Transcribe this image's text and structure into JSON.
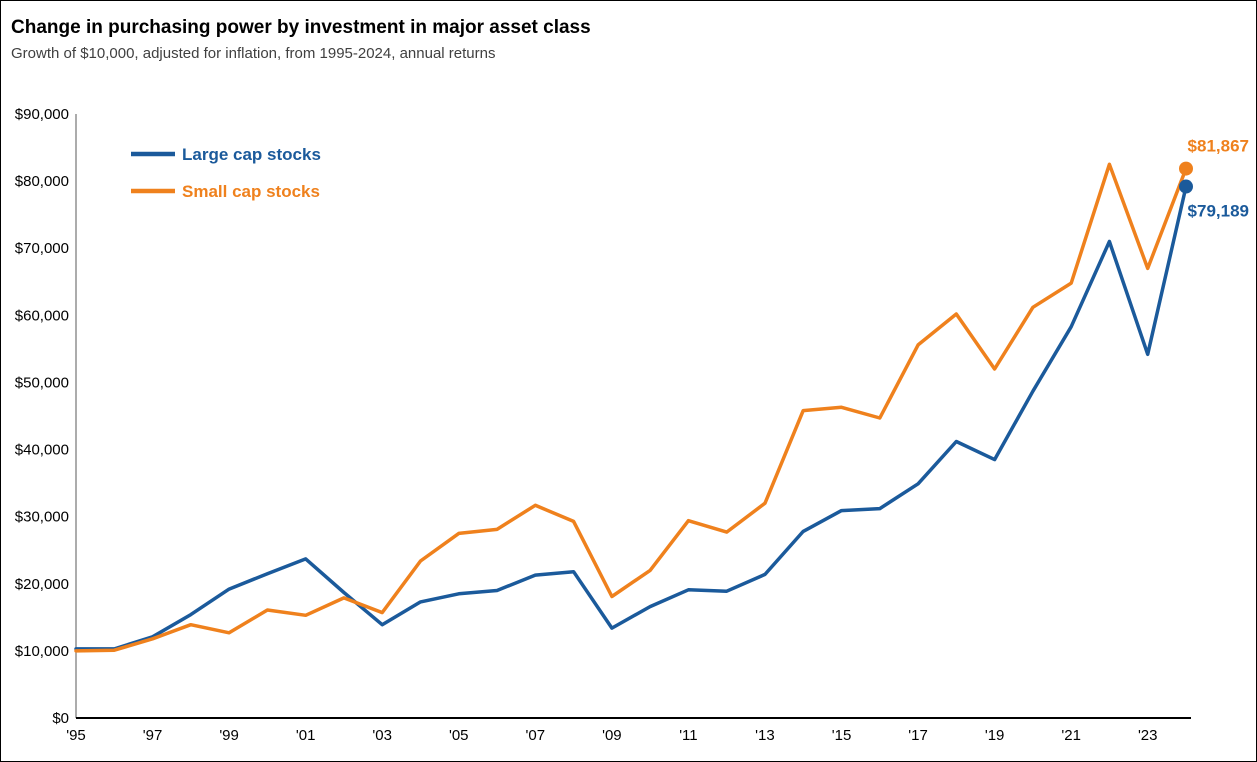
{
  "page": {
    "title": "Change in purchasing power by investment in major asset class",
    "subtitle": "Growth of $10,000, adjusted for inflation, from 1995-2024, annual returns"
  },
  "chart_data": {
    "type": "line",
    "title": "Change in purchasing power by investment in major asset class",
    "subtitle": "Growth of $10,000, adjusted for inflation, from 1995-2024, annual returns",
    "xlabel": "",
    "ylabel": "",
    "ylim": [
      0,
      90000
    ],
    "ytick_step": 10000,
    "ytick_labels": [
      "$0",
      "$10,000",
      "$20,000",
      "$30,000",
      "$40,000",
      "$50,000",
      "$60,000",
      "$70,000",
      "$80,000",
      "$90,000"
    ],
    "xtick_years": [
      1995,
      1997,
      1999,
      2001,
      2003,
      2005,
      2007,
      2009,
      2011,
      2013,
      2015,
      2017,
      2019,
      2021,
      2023
    ],
    "xtick_labels": [
      "'95",
      "'97",
      "'99",
      "'01",
      "'03",
      "'05",
      "'07",
      "'09",
      "'11",
      "'13",
      "'15",
      "'17",
      "'19",
      "'21",
      "'23"
    ],
    "grid": false,
    "legend_position": "top-left",
    "x": [
      1995,
      1996,
      1997,
      1998,
      1999,
      2000,
      2001,
      2002,
      2003,
      2004,
      2005,
      2006,
      2007,
      2008,
      2009,
      2010,
      2011,
      2012,
      2013,
      2014,
      2015,
      2016,
      2017,
      2018,
      2019,
      2020,
      2021,
      2022,
      2023,
      2024
    ],
    "series": [
      {
        "name": "Large cap stocks",
        "color": "#1b5a9b",
        "end_label": "$79,189",
        "end_label_position": "below",
        "values": [
          10300,
          10300,
          12100,
          15400,
          19200,
          21500,
          23700,
          18700,
          13900,
          17300,
          18500,
          19000,
          21300,
          21800,
          13400,
          16600,
          19100,
          18900,
          21400,
          27800,
          30900,
          31200,
          34900,
          41200,
          38500,
          48700,
          58300,
          71000,
          54200,
          79189
        ]
      },
      {
        "name": "Small cap stocks",
        "color": "#ef811d",
        "end_label": "$81,867",
        "end_label_position": "above",
        "values": [
          10000,
          10100,
          11800,
          13900,
          12700,
          16100,
          15300,
          17900,
          15700,
          23400,
          27500,
          28100,
          31700,
          29300,
          18100,
          22000,
          29400,
          27700,
          32000,
          45800,
          46300,
          44700,
          55600,
          60200,
          52000,
          61200,
          64800,
          82500,
          67000,
          81867
        ]
      }
    ]
  }
}
